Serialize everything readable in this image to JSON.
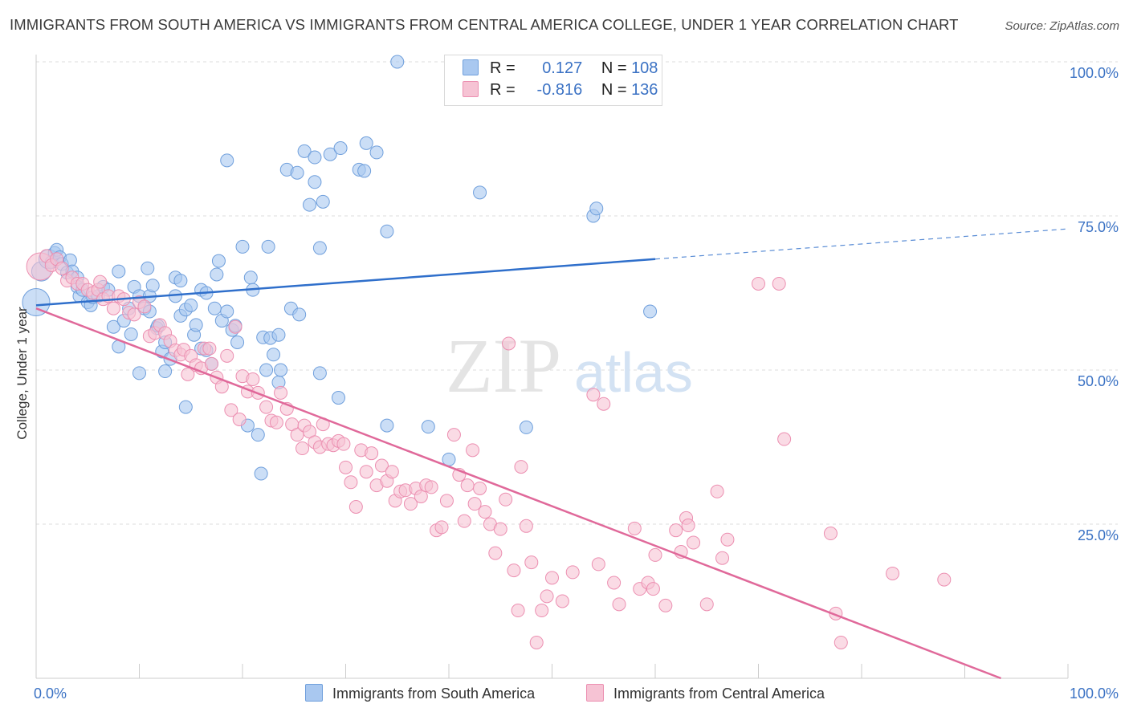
{
  "header": {
    "title": "IMMIGRANTS FROM SOUTH AMERICA VS IMMIGRANTS FROM CENTRAL AMERICA COLLEGE, UNDER 1 YEAR CORRELATION CHART",
    "source": "Source: ZipAtlas.com"
  },
  "legend": {
    "r_label": "R =",
    "n_label": "N =",
    "rows": [
      {
        "r": "0.127",
        "n": "108"
      },
      {
        "r": "-0.816",
        "n": "136"
      }
    ]
  },
  "watermark": {
    "zip": "ZIP",
    "atlas": "atlas"
  },
  "colors": {
    "blue_fill": "#a9c8f0",
    "blue_stroke": "#6f9fdc",
    "blue_line": "#2f6fcb",
    "pink_fill": "#f6c3d4",
    "pink_stroke": "#ec8fb1",
    "pink_line": "#e0699a",
    "axis_label": "#3b72c4",
    "grid": "#dddddd"
  },
  "chart_data": {
    "type": "scatter",
    "title": "IMMIGRANTS FROM SOUTH AMERICA VS IMMIGRANTS FROM CENTRAL AMERICA COLLEGE, UNDER 1 YEAR CORRELATION CHART",
    "ylabel": "College, Under 1 year",
    "xlabel": "",
    "xlim": [
      0,
      100
    ],
    "ylim": [
      0,
      100
    ],
    "x_tick_labels": [
      "0.0%",
      "100.0%"
    ],
    "y_tick_labels": [
      "25.0%",
      "50.0%",
      "75.0%",
      "100.0%"
    ],
    "y_ticks": [
      25,
      50,
      75,
      100
    ],
    "grid": true,
    "legend_placement": "top-center",
    "series": [
      {
        "name": "Immigrants from South America",
        "r": 0.127,
        "n": 108,
        "trend": {
          "x0": 0,
          "y0": 60.5,
          "x1": 60,
          "y1": 68.0,
          "dashed_to": 100,
          "dashed_y": 72.9
        },
        "points": [
          [
            0,
            61,
            "L"
          ],
          [
            0.5,
            66,
            "M"
          ],
          [
            1.2,
            68,
            "M"
          ],
          [
            1.5,
            67.5
          ],
          [
            1.8,
            69
          ],
          [
            2,
            69.5
          ],
          [
            2.3,
            68.3
          ],
          [
            2.5,
            67.2
          ],
          [
            3,
            65.8
          ],
          [
            3.3,
            67.8
          ],
          [
            3.5,
            66
          ],
          [
            4,
            65
          ],
          [
            4,
            63.5
          ],
          [
            4.2,
            62
          ],
          [
            4.5,
            63
          ],
          [
            5,
            61
          ],
          [
            5.3,
            60.5
          ],
          [
            5.5,
            61.8
          ],
          [
            6,
            62
          ],
          [
            6.5,
            63.5
          ],
          [
            7,
            63
          ],
          [
            7.5,
            57
          ],
          [
            8,
            66
          ],
          [
            8,
            53.8
          ],
          [
            8.5,
            58
          ],
          [
            9,
            60
          ],
          [
            9.2,
            55.8
          ],
          [
            9.5,
            63.5
          ],
          [
            10,
            62
          ],
          [
            10,
            49.5
          ],
          [
            10.5,
            60
          ],
          [
            10.8,
            66.5
          ],
          [
            11,
            62
          ],
          [
            11,
            59.5
          ],
          [
            11.3,
            63.7
          ],
          [
            11.7,
            56.8
          ],
          [
            11.8,
            57.2
          ],
          [
            12.2,
            53
          ],
          [
            12.5,
            54.5
          ],
          [
            12.5,
            49.8
          ],
          [
            13,
            51.8
          ],
          [
            13.5,
            62
          ],
          [
            13.5,
            65
          ],
          [
            14,
            64.5
          ],
          [
            14,
            58.8
          ],
          [
            14.5,
            59.8
          ],
          [
            14.5,
            44
          ],
          [
            15,
            60.5
          ],
          [
            15.3,
            55.7
          ],
          [
            15.5,
            57.3
          ],
          [
            16,
            63
          ],
          [
            16,
            53.5
          ],
          [
            16.5,
            62.5
          ],
          [
            16.5,
            53.2
          ],
          [
            17,
            51
          ],
          [
            17.3,
            60
          ],
          [
            17.5,
            65.5
          ],
          [
            17.7,
            67.7
          ],
          [
            18,
            58
          ],
          [
            18.5,
            59.5
          ],
          [
            18.5,
            84
          ],
          [
            19,
            56.5
          ],
          [
            19.3,
            57.2
          ],
          [
            19.5,
            54.5
          ],
          [
            20,
            70
          ],
          [
            20.5,
            41
          ],
          [
            20.8,
            65
          ],
          [
            21,
            63
          ],
          [
            21.5,
            39.5
          ],
          [
            21.8,
            33.2
          ],
          [
            22,
            55.3
          ],
          [
            22.3,
            50
          ],
          [
            22.5,
            70
          ],
          [
            22.7,
            55.2
          ],
          [
            23,
            52.5
          ],
          [
            23.5,
            48
          ],
          [
            23.5,
            55.7
          ],
          [
            23.7,
            50
          ],
          [
            24.3,
            82.5
          ],
          [
            24.7,
            60
          ],
          [
            25.3,
            82
          ],
          [
            25.5,
            59
          ],
          [
            26,
            85.5
          ],
          [
            26.5,
            76.8
          ],
          [
            27,
            80.5
          ],
          [
            27,
            84.5
          ],
          [
            27.5,
            49.5
          ],
          [
            27.5,
            69.8
          ],
          [
            27.8,
            77.3
          ],
          [
            28.5,
            85
          ],
          [
            29.3,
            45.5
          ],
          [
            29.5,
            86
          ],
          [
            31.3,
            82.5
          ],
          [
            31.8,
            82.3
          ],
          [
            32,
            86.8
          ],
          [
            33,
            85.3
          ],
          [
            34,
            41
          ],
          [
            34,
            72.5
          ],
          [
            35,
            100
          ],
          [
            38,
            40.8
          ],
          [
            40,
            35.5
          ],
          [
            43,
            78.8
          ],
          [
            47.5,
            40.7
          ],
          [
            54,
            75
          ],
          [
            54.3,
            76.2
          ],
          [
            59.5,
            59.5
          ]
        ]
      },
      {
        "name": "Immigrants from Central America",
        "r": -0.816,
        "n": 136,
        "trend": {
          "x0": 0,
          "y0": 60.0,
          "x1": 93.5,
          "y1": 0
        },
        "points": [
          [
            0.4,
            66.8,
            "L"
          ],
          [
            1,
            68.5
          ],
          [
            1.5,
            67
          ],
          [
            2,
            68
          ],
          [
            2.5,
            66.5
          ],
          [
            3,
            64.5
          ],
          [
            3.5,
            65
          ],
          [
            4,
            64
          ],
          [
            4.5,
            64
          ],
          [
            5,
            63
          ],
          [
            5.5,
            62.5
          ],
          [
            6,
            63
          ],
          [
            6.2,
            64.3
          ],
          [
            6.5,
            61.5
          ],
          [
            7,
            62
          ],
          [
            7.5,
            60
          ],
          [
            8,
            62
          ],
          [
            8.5,
            61.5
          ],
          [
            9,
            59.3
          ],
          [
            9.5,
            59
          ],
          [
            10,
            61
          ],
          [
            10.5,
            60.3
          ],
          [
            11,
            55.5
          ],
          [
            11.5,
            56
          ],
          [
            12,
            57.3
          ],
          [
            12.5,
            56
          ],
          [
            13,
            54.7
          ],
          [
            13.5,
            53.2
          ],
          [
            14,
            52.5
          ],
          [
            14.3,
            53.3
          ],
          [
            14.7,
            49.3
          ],
          [
            15,
            52.3
          ],
          [
            15.5,
            50.8
          ],
          [
            16,
            50.3
          ],
          [
            16.3,
            53.5
          ],
          [
            16.8,
            53.5
          ],
          [
            17,
            51
          ],
          [
            17.5,
            48.8
          ],
          [
            18,
            47.3
          ],
          [
            18.5,
            52.3
          ],
          [
            18.9,
            43.5
          ],
          [
            19.3,
            57
          ],
          [
            19.7,
            42
          ],
          [
            20,
            49
          ],
          [
            20.5,
            46.5
          ],
          [
            21,
            48.5
          ],
          [
            21.5,
            46.3
          ],
          [
            22.3,
            44
          ],
          [
            22.8,
            41.8
          ],
          [
            23.3,
            41.5
          ],
          [
            23.7,
            46.3
          ],
          [
            24.3,
            43.7
          ],
          [
            24.8,
            41.2
          ],
          [
            25.3,
            39.5
          ],
          [
            25.8,
            37.3
          ],
          [
            26,
            41
          ],
          [
            26.5,
            40
          ],
          [
            27,
            38.3
          ],
          [
            27.5,
            37.5
          ],
          [
            27.8,
            41.2
          ],
          [
            28.3,
            38
          ],
          [
            28.8,
            37.8
          ],
          [
            29.3,
            38.5
          ],
          [
            29.8,
            38
          ],
          [
            30,
            34.2
          ],
          [
            30.5,
            31.8
          ],
          [
            31,
            27.8
          ],
          [
            31.5,
            37
          ],
          [
            32,
            33.5
          ],
          [
            32.5,
            36.5
          ],
          [
            33,
            31.3
          ],
          [
            33.5,
            34.5
          ],
          [
            34,
            32
          ],
          [
            34.5,
            33.5
          ],
          [
            34.8,
            28.8
          ],
          [
            35.3,
            30.3
          ],
          [
            35.8,
            30.5
          ],
          [
            36.3,
            28.3
          ],
          [
            36.8,
            30.8
          ],
          [
            37.3,
            29.5
          ],
          [
            37.8,
            31.3
          ],
          [
            38.3,
            31
          ],
          [
            38.8,
            24
          ],
          [
            39.3,
            24.5
          ],
          [
            39.8,
            28.8
          ],
          [
            40.5,
            39.5
          ],
          [
            41,
            33
          ],
          [
            41.5,
            25.5
          ],
          [
            41.8,
            31.3
          ],
          [
            42.3,
            37
          ],
          [
            42.5,
            28.3
          ],
          [
            43,
            30.8
          ],
          [
            43.5,
            27
          ],
          [
            44,
            25
          ],
          [
            44.5,
            20.3
          ],
          [
            45,
            24.2
          ],
          [
            45.5,
            29
          ],
          [
            45.8,
            54.3
          ],
          [
            46.3,
            17.5
          ],
          [
            46.7,
            11
          ],
          [
            47,
            34.3
          ],
          [
            47.5,
            24.7
          ],
          [
            48,
            18.8
          ],
          [
            48.5,
            5.8
          ],
          [
            49,
            11
          ],
          [
            49.5,
            13.3
          ],
          [
            50,
            16.3
          ],
          [
            51,
            12.5
          ],
          [
            52,
            17.2
          ],
          [
            54,
            46
          ],
          [
            54.5,
            18.5
          ],
          [
            55,
            44.5
          ],
          [
            56,
            15.5
          ],
          [
            56.5,
            12
          ],
          [
            58,
            24.3
          ],
          [
            58.5,
            14.5
          ],
          [
            59.3,
            15.5
          ],
          [
            59.8,
            14.5
          ],
          [
            60,
            20
          ],
          [
            61,
            11.8
          ],
          [
            62,
            24
          ],
          [
            62.5,
            20.5
          ],
          [
            63,
            26
          ],
          [
            63.2,
            24.8
          ],
          [
            63.7,
            22
          ],
          [
            65,
            12
          ],
          [
            66,
            30.3
          ],
          [
            66.5,
            19.5
          ],
          [
            67,
            22.5
          ],
          [
            70,
            64
          ],
          [
            72,
            64
          ],
          [
            72.5,
            38.8
          ],
          [
            77,
            23.5
          ],
          [
            77.5,
            10.5
          ],
          [
            78,
            5.8
          ],
          [
            83,
            17
          ],
          [
            88,
            16
          ]
        ]
      }
    ]
  },
  "bottom_legend": [
    "Immigrants from South America",
    "Immigrants from Central America"
  ]
}
